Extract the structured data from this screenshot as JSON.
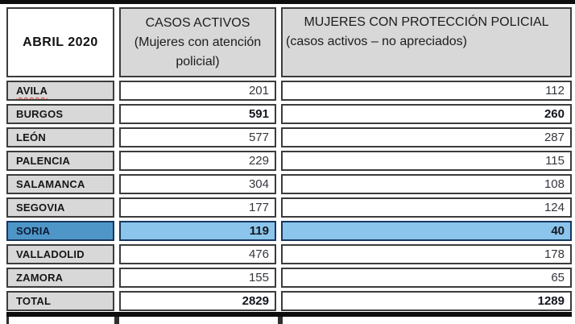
{
  "table": {
    "corner_label": "ABRIL 2020",
    "col_casos": {
      "title": "CASOS ACTIVOS",
      "subtitle": "(Mujeres con atención policial)"
    },
    "col_proteccion": {
      "title": "MUJERES CON PROTECCIÓN POLICIAL",
      "subtitle": "(casos activos – no apreciados)"
    },
    "rows": [
      {
        "name": "AVILA",
        "casos": "201",
        "proteccion": "112"
      },
      {
        "name": "BURGOS",
        "casos": "591",
        "proteccion": "260"
      },
      {
        "name": "LEÓN",
        "casos": "577",
        "proteccion": "287"
      },
      {
        "name": "PALENCIA",
        "casos": "229",
        "proteccion": "115"
      },
      {
        "name": "SALAMANCA",
        "casos": "304",
        "proteccion": "108"
      },
      {
        "name": "SEGOVIA",
        "casos": "177",
        "proteccion": "124"
      },
      {
        "name": "SORIA",
        "casos": "119",
        "proteccion": "40"
      },
      {
        "name": "VALLADOLID",
        "casos": "476",
        "proteccion": "178"
      },
      {
        "name": "ZAMORA",
        "casos": "155",
        "proteccion": "65"
      },
      {
        "name": "TOTAL",
        "casos": "2829",
        "proteccion": "1289"
      }
    ]
  },
  "colors": {
    "header_bg": "#d8d8d8",
    "cell_border": "#3c3c3c",
    "frame_bar": "#0d0d0d",
    "highlight_label_bg": "#4f96c8",
    "highlight_value_bg": "#8bc5eb",
    "highlight_border": "#17375e",
    "spellcheck_red": "#e03a2f"
  }
}
